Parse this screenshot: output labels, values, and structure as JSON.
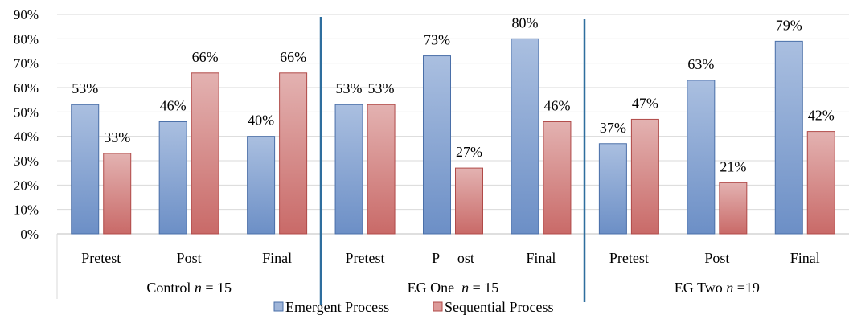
{
  "chart_data": {
    "type": "bar",
    "ylim": [
      0,
      90
    ],
    "yticks": [
      "0%",
      "10%",
      "20%",
      "30%",
      "40%",
      "50%",
      "60%",
      "70%",
      "80%",
      "90%"
    ],
    "groups": [
      {
        "label_main": "Control ",
        "label_n": "n",
        "label_rest": " = 15",
        "categories": [
          "Pretest",
          "Post",
          "Final"
        ]
      },
      {
        "label_main": "EG One  ",
        "label_n": "n",
        "label_rest": " = 15",
        "categories": [
          "Pretest",
          "P     ost",
          "Final"
        ]
      },
      {
        "label_main": "EG Two ",
        "label_n": "n",
        "label_rest": " =19",
        "categories": [
          "Pretest",
          "Post",
          "Final"
        ]
      }
    ],
    "series": [
      {
        "name": "Emergent Process",
        "color": "#9fb5d9",
        "edge": "#4a6fa8",
        "values": [
          53,
          46,
          40,
          53,
          73,
          80,
          37,
          63,
          79
        ],
        "labels": [
          "53%",
          "46%",
          "40%",
          "53%",
          "73%",
          "80%",
          "37%",
          "63%",
          "79%"
        ]
      },
      {
        "name": "Sequential Process",
        "color": "#dc9a99",
        "edge": "#b04a48",
        "values": [
          33,
          66,
          66,
          53,
          27,
          46,
          47,
          21,
          42
        ],
        "labels": [
          "33%",
          "66%",
          "66%",
          "53%",
          "27%",
          "46%",
          "47%",
          "21%",
          "42%"
        ]
      }
    ],
    "separator_color": "#2e6e9e"
  }
}
